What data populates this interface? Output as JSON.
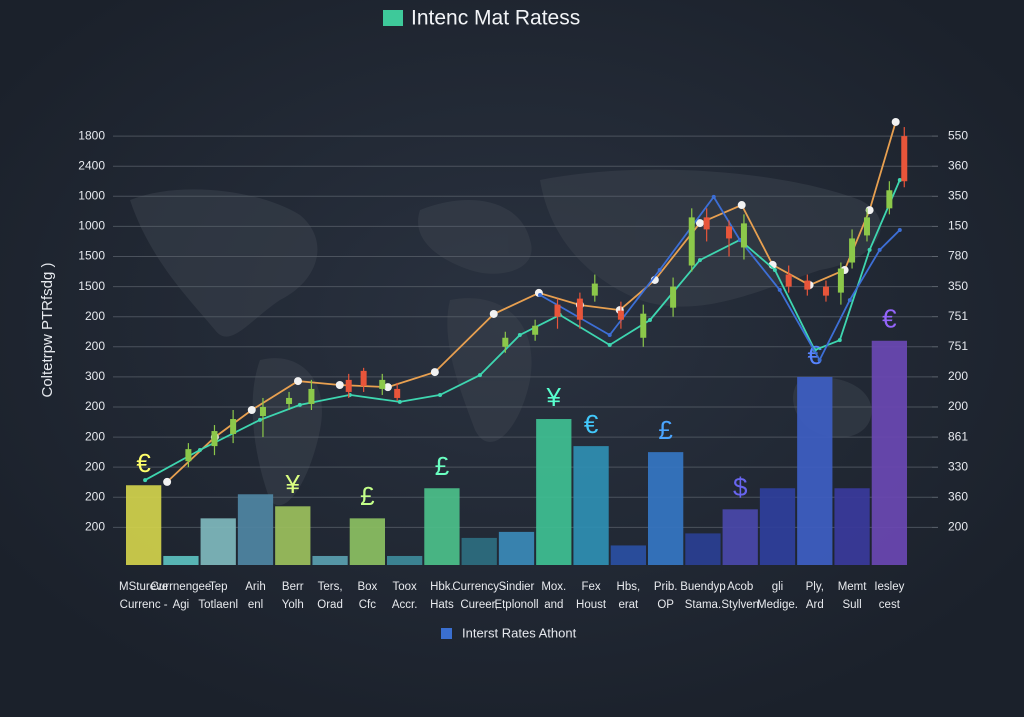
{
  "chart_data": {
    "type": "bar",
    "title": "Intenc Mat Ratess",
    "y_label": "Coltetrpw PTRfsdg )",
    "categories": [
      "MStureve",
      "Currnengee",
      "Tep",
      "Arih",
      "Berr",
      "Ters,",
      "Box",
      "Toox",
      "Hbk.",
      "Currency -",
      "Sindier",
      "Mox.",
      "Fex",
      "Hbs,",
      "Prib.",
      "Buendyp",
      "Acob",
      "gli",
      "Ply,",
      "Memt",
      "Iesley"
    ],
    "categories_line2": [
      "Currenc -",
      "Agi",
      "Totlaenl",
      "enl",
      "Yolh",
      "Orad",
      "Cfc",
      "Accr.",
      "Hats",
      "Cureer,",
      "Etplonoll",
      "and",
      "Houst",
      "erat",
      "OP",
      "Stama.",
      "Stylven",
      "Medige.",
      "Ard",
      "Sull",
      "cest"
    ],
    "series": [
      {
        "name": "Interst Rates Athont",
        "color": "#3a6fd0",
        "values": [
          2.4,
          0.05,
          1.3,
          2.1,
          1.7,
          0.05,
          1.3,
          0.05,
          2.3,
          0.65,
          0.85,
          4.6,
          3.7,
          0.4,
          3.5,
          0.8,
          1.6,
          2.3,
          6.0,
          2.3,
          7.2
        ],
        "colors": [
          "#d2d24c",
          "#5cc0c0",
          "#7fb8bd",
          "#4f86a3",
          "#9cc05c",
          "#5aa0b0",
          "#8cc062",
          "#3e8a9a",
          "#4cc08a",
          "#2e6e80",
          "#3b8ab8",
          "#3fc093",
          "#2f8fb3",
          "#2a4fa3",
          "#3576c3",
          "#2a3f93",
          "#4a48aa",
          "#2f3f9c",
          "#3e5ec3",
          "#3a3a9c",
          "#6a48b3"
        ]
      }
    ],
    "bar_symbols": [
      "€",
      null,
      null,
      null,
      "¥",
      null,
      "£",
      null,
      "£",
      null,
      null,
      "¥",
      "€",
      null,
      "£",
      null,
      "$",
      null,
      "€",
      null,
      "€"
    ],
    "lines": [
      {
        "color": "#e8a050",
        "x": [
          1.13,
          2.41,
          3.4,
          4.64,
          5.76,
          7.05,
          8.31,
          9.89,
          11.1,
          12.2,
          13.27,
          14.21,
          15.42,
          16.54,
          17.37,
          18.36,
          19.3,
          19.97,
          20.67
        ],
        "values": [
          2.51,
          4.0,
          4.9,
          5.86,
          5.73,
          5.66,
          6.16,
          8.09,
          8.79,
          8.39,
          8.22,
          9.22,
          11.11,
          11.71,
          9.72,
          9.05,
          9.55,
          11.54,
          14.47
        ]
      },
      {
        "color": "#3ed6b0",
        "x": [
          0.54,
          2.01,
          3.62,
          4.69,
          6.03,
          7.37,
          8.45,
          9.52,
          10.59,
          11.66,
          13.0,
          14.08,
          15.42,
          16.49,
          17.43,
          18.5,
          19.17,
          19.97,
          20.78
        ],
        "values": [
          2.57,
          3.57,
          4.57,
          5.07,
          5.4,
          5.17,
          5.4,
          6.06,
          7.39,
          8.06,
          7.06,
          7.89,
          9.88,
          10.55,
          9.55,
          6.89,
          7.22,
          10.22,
          12.54
        ]
      },
      {
        "color": "#3d6fd6",
        "x": [
          11.13,
          13.0,
          14.34,
          15.79,
          16.49,
          17.56,
          18.63,
          19.44,
          20.24,
          20.78
        ],
        "values": [
          8.72,
          7.39,
          9.55,
          11.98,
          10.55,
          8.89,
          6.56,
          8.55,
          10.22,
          10.88
        ]
      }
    ],
    "candles": {
      "up_color": "#8cc84a",
      "down_color": "#e8553a",
      "x": [
        1.7,
        2.4,
        2.9,
        3.7,
        4.4,
        5.0,
        6.0,
        6.4,
        6.9,
        7.3,
        10.2,
        11.0,
        11.6,
        12.2,
        12.6,
        13.3,
        13.9,
        14.7,
        15.2,
        15.6,
        16.2,
        16.6,
        17.8,
        18.3,
        18.8,
        19.2,
        19.5,
        19.9,
        20.5,
        20.9
      ],
      "open": [
        3.2,
        3.7,
        4.1,
        4.7,
        5.1,
        5.1,
        5.9,
        6.2,
        5.6,
        5.6,
        7.0,
        7.4,
        8.4,
        8.6,
        8.7,
        8.2,
        7.3,
        8.3,
        9.7,
        11.3,
        11.0,
        10.3,
        9.4,
        9.2,
        9.0,
        8.8,
        9.8,
        10.7,
        11.6,
        14.0
      ],
      "close": [
        3.6,
        4.2,
        4.6,
        5.0,
        5.3,
        5.6,
        5.5,
        5.7,
        5.9,
        5.3,
        7.3,
        7.7,
        8.0,
        7.9,
        9.1,
        7.9,
        8.1,
        9.0,
        11.3,
        10.9,
        10.6,
        11.1,
        9.0,
        8.9,
        8.7,
        9.6,
        10.6,
        11.3,
        12.2,
        12.5
      ],
      "high": [
        3.8,
        4.4,
        4.9,
        5.3,
        5.5,
        5.9,
        6.1,
        6.3,
        6.1,
        5.8,
        7.5,
        7.9,
        8.6,
        8.8,
        9.4,
        8.5,
        8.4,
        9.3,
        11.6,
        11.6,
        11.2,
        11.4,
        9.7,
        9.4,
        9.2,
        9.8,
        10.9,
        11.6,
        12.5,
        14.3
      ],
      "low": [
        3.0,
        3.4,
        3.8,
        4.0,
        4.9,
        4.9,
        5.3,
        5.5,
        5.4,
        5.2,
        6.8,
        7.2,
        7.6,
        7.6,
        8.5,
        7.6,
        7.0,
        8.0,
        9.5,
        10.5,
        10.0,
        9.9,
        8.8,
        8.7,
        8.5,
        8.4,
        9.6,
        10.5,
        11.4,
        12.3
      ]
    },
    "xlim": [
      0,
      21
    ],
    "ylim": [
      -0.25,
      15
    ],
    "yticks": [
      {
        "value": 1,
        "label": "200"
      },
      {
        "value": 2,
        "label": "200"
      },
      {
        "value": 3,
        "label": "200"
      },
      {
        "value": 4,
        "label": "200"
      },
      {
        "value": 5,
        "label": "200"
      },
      {
        "value": 6,
        "label": "300"
      },
      {
        "value": 7,
        "label": "200"
      },
      {
        "value": 8,
        "label": "200"
      },
      {
        "value": 9,
        "label": "1500"
      },
      {
        "value": 10,
        "label": "1500"
      },
      {
        "value": 11,
        "label": "1000"
      },
      {
        "value": 12,
        "label": "1000"
      },
      {
        "value": 13,
        "label": "2400"
      },
      {
        "value": 14,
        "label": "1800"
      }
    ],
    "y2lim": [
      -0.25,
      15
    ],
    "y2ticks": [
      {
        "value": 1,
        "label": "200"
      },
      {
        "value": 2,
        "label": "360"
      },
      {
        "value": 3,
        "label": "330"
      },
      {
        "value": 4,
        "label": "861"
      },
      {
        "value": 5,
        "label": "200"
      },
      {
        "value": 6,
        "label": "200"
      },
      {
        "value": 7,
        "label": "751"
      },
      {
        "value": 8,
        "label": "751"
      },
      {
        "value": 9,
        "label": "350"
      },
      {
        "value": 10,
        "label": "780"
      },
      {
        "value": 11,
        "label": "150"
      },
      {
        "value": 12,
        "label": "350"
      },
      {
        "value": 13,
        "label": "360"
      },
      {
        "value": 14,
        "label": "550"
      }
    ],
    "grid": true
  }
}
